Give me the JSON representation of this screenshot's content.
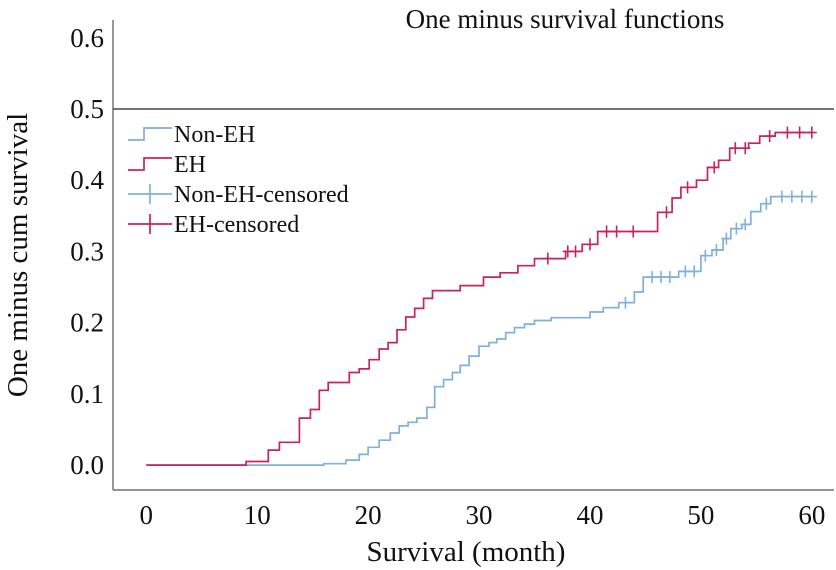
{
  "chart_data": {
    "type": "line",
    "step": true,
    "title": "One minus survival functions",
    "xlabel": "Survival (month)",
    "ylabel": "One minus cum survival",
    "xlim": [
      -3,
      62
    ],
    "ylim": [
      -0.035,
      0.625
    ],
    "x_ticks": [
      0,
      10,
      20,
      30,
      40,
      50,
      60
    ],
    "y_ticks": [
      0.0,
      0.1,
      0.2,
      0.3,
      0.4,
      0.5,
      0.6
    ],
    "x_tick_labels": [
      "0",
      "10",
      "20",
      "30",
      "40",
      "50",
      "60"
    ],
    "y_tick_labels": [
      "0.0",
      "0.1",
      "0.2",
      "0.3",
      "0.4",
      "0.5",
      "0.6"
    ],
    "reference_line": {
      "y": 0.5
    },
    "grid": false,
    "legend_position": "upper-left",
    "legend": [
      {
        "label": "Non-EH",
        "type": "step",
        "color": "#7fb0de"
      },
      {
        "label": "EH",
        "type": "step",
        "color": "#c9245a"
      },
      {
        "label": "Non-EH-censored",
        "type": "censor",
        "color": "#7fb0de"
      },
      {
        "label": "EH-censored",
        "type": "censor",
        "color": "#c9245a"
      }
    ],
    "series": [
      {
        "name": "Non-EH",
        "color": "#7fb0de",
        "points": [
          [
            0,
            0.0
          ],
          [
            16,
            0.0
          ],
          [
            16,
            0.002
          ],
          [
            18,
            0.002
          ],
          [
            18,
            0.007
          ],
          [
            19.2,
            0.007
          ],
          [
            19.2,
            0.015
          ],
          [
            20,
            0.015
          ],
          [
            20,
            0.025
          ],
          [
            21,
            0.025
          ],
          [
            21,
            0.035
          ],
          [
            22,
            0.035
          ],
          [
            22,
            0.045
          ],
          [
            22.8,
            0.045
          ],
          [
            22.8,
            0.055
          ],
          [
            23.6,
            0.055
          ],
          [
            23.6,
            0.06
          ],
          [
            24.4,
            0.06
          ],
          [
            24.4,
            0.066
          ],
          [
            25.3,
            0.066
          ],
          [
            25.3,
            0.081
          ],
          [
            26,
            0.081
          ],
          [
            26,
            0.11
          ],
          [
            26.8,
            0.11
          ],
          [
            26.8,
            0.12
          ],
          [
            27.6,
            0.12
          ],
          [
            27.6,
            0.13
          ],
          [
            28.3,
            0.13
          ],
          [
            28.3,
            0.14
          ],
          [
            29.1,
            0.14
          ],
          [
            29.1,
            0.153
          ],
          [
            30.0,
            0.153
          ],
          [
            30.0,
            0.167
          ],
          [
            30.9,
            0.167
          ],
          [
            30.9,
            0.172
          ],
          [
            31.6,
            0.172
          ],
          [
            31.6,
            0.177
          ],
          [
            32.4,
            0.177
          ],
          [
            32.4,
            0.186
          ],
          [
            33.2,
            0.186
          ],
          [
            33.2,
            0.193
          ],
          [
            34.1,
            0.193
          ],
          [
            34.1,
            0.198
          ],
          [
            35.0,
            0.198
          ],
          [
            35.0,
            0.203
          ],
          [
            36.5,
            0.203
          ],
          [
            36.5,
            0.207
          ],
          [
            40.0,
            0.207
          ],
          [
            40.0,
            0.215
          ],
          [
            41.2,
            0.215
          ],
          [
            41.2,
            0.221
          ],
          [
            42.6,
            0.221
          ],
          [
            42.6,
            0.228
          ],
          [
            44.0,
            0.228
          ],
          [
            44.0,
            0.243
          ],
          [
            44.8,
            0.243
          ],
          [
            44.8,
            0.264
          ],
          [
            48.0,
            0.264
          ],
          [
            48.0,
            0.272
          ],
          [
            50.0,
            0.272
          ],
          [
            50.0,
            0.294
          ],
          [
            51.0,
            0.294
          ],
          [
            51.0,
            0.302
          ],
          [
            52.0,
            0.302
          ],
          [
            52.0,
            0.318
          ],
          [
            52.7,
            0.318
          ],
          [
            52.7,
            0.332
          ],
          [
            53.7,
            0.332
          ],
          [
            53.7,
            0.338
          ],
          [
            54.5,
            0.338
          ],
          [
            54.5,
            0.356
          ],
          [
            55.4,
            0.356
          ],
          [
            55.4,
            0.367
          ],
          [
            56.3,
            0.367
          ],
          [
            56.3,
            0.377
          ],
          [
            60.0,
            0.377
          ]
        ],
        "censored": [
          43.2,
          45.6,
          46.4,
          47.2,
          48.6,
          49.4,
          50.4,
          51.4,
          52.3,
          53.2,
          54.0,
          55.9,
          57.3,
          58.2,
          59.1,
          60.0
        ]
      },
      {
        "name": "EH",
        "color": "#c9245a",
        "points": [
          [
            0,
            0.0
          ],
          [
            9,
            0.0
          ],
          [
            9,
            0.005
          ],
          [
            11,
            0.005
          ],
          [
            11,
            0.021
          ],
          [
            12,
            0.021
          ],
          [
            12,
            0.032
          ],
          [
            13.8,
            0.032
          ],
          [
            13.8,
            0.066
          ],
          [
            14.8,
            0.066
          ],
          [
            14.8,
            0.078
          ],
          [
            15.6,
            0.078
          ],
          [
            15.6,
            0.105
          ],
          [
            16.4,
            0.105
          ],
          [
            16.4,
            0.116
          ],
          [
            18.3,
            0.116
          ],
          [
            18.3,
            0.13
          ],
          [
            19.2,
            0.13
          ],
          [
            19.2,
            0.135
          ],
          [
            20.1,
            0.135
          ],
          [
            20.1,
            0.148
          ],
          [
            21,
            0.148
          ],
          [
            21,
            0.163
          ],
          [
            21.8,
            0.163
          ],
          [
            21.8,
            0.172
          ],
          [
            22.6,
            0.172
          ],
          [
            22.6,
            0.19
          ],
          [
            23.4,
            0.19
          ],
          [
            23.4,
            0.208
          ],
          [
            24.2,
            0.208
          ],
          [
            24.2,
            0.22
          ],
          [
            25,
            0.22
          ],
          [
            25,
            0.234
          ],
          [
            25.8,
            0.234
          ],
          [
            25.8,
            0.245
          ],
          [
            28.3,
            0.245
          ],
          [
            28.3,
            0.252
          ],
          [
            30.4,
            0.252
          ],
          [
            30.4,
            0.264
          ],
          [
            31.9,
            0.264
          ],
          [
            31.9,
            0.27
          ],
          [
            33.5,
            0.27
          ],
          [
            33.5,
            0.28
          ],
          [
            35.0,
            0.28
          ],
          [
            35.0,
            0.29
          ],
          [
            37.8,
            0.29
          ],
          [
            37.8,
            0.3
          ],
          [
            39.3,
            0.3
          ],
          [
            39.3,
            0.31
          ],
          [
            40.7,
            0.31
          ],
          [
            40.7,
            0.328
          ],
          [
            46.1,
            0.328
          ],
          [
            46.1,
            0.355
          ],
          [
            47.4,
            0.355
          ],
          [
            47.4,
            0.375
          ],
          [
            48.2,
            0.375
          ],
          [
            48.2,
            0.39
          ],
          [
            49.6,
            0.39
          ],
          [
            49.6,
            0.4
          ],
          [
            50.6,
            0.4
          ],
          [
            50.6,
            0.418
          ],
          [
            51.6,
            0.418
          ],
          [
            51.6,
            0.428
          ],
          [
            52.6,
            0.428
          ],
          [
            52.6,
            0.445
          ],
          [
            54.3,
            0.445
          ],
          [
            54.3,
            0.452
          ],
          [
            55.3,
            0.452
          ],
          [
            55.3,
            0.462
          ],
          [
            56.7,
            0.462
          ],
          [
            56.7,
            0.467
          ],
          [
            60.0,
            0.467
          ]
        ],
        "censored": [
          36.2,
          38.0,
          38.7,
          40.0,
          41.5,
          42.4,
          43.9,
          46.9,
          48.8,
          51.2,
          53.1,
          54.0,
          56.2,
          57.8,
          58.9,
          60.0
        ]
      }
    ]
  }
}
